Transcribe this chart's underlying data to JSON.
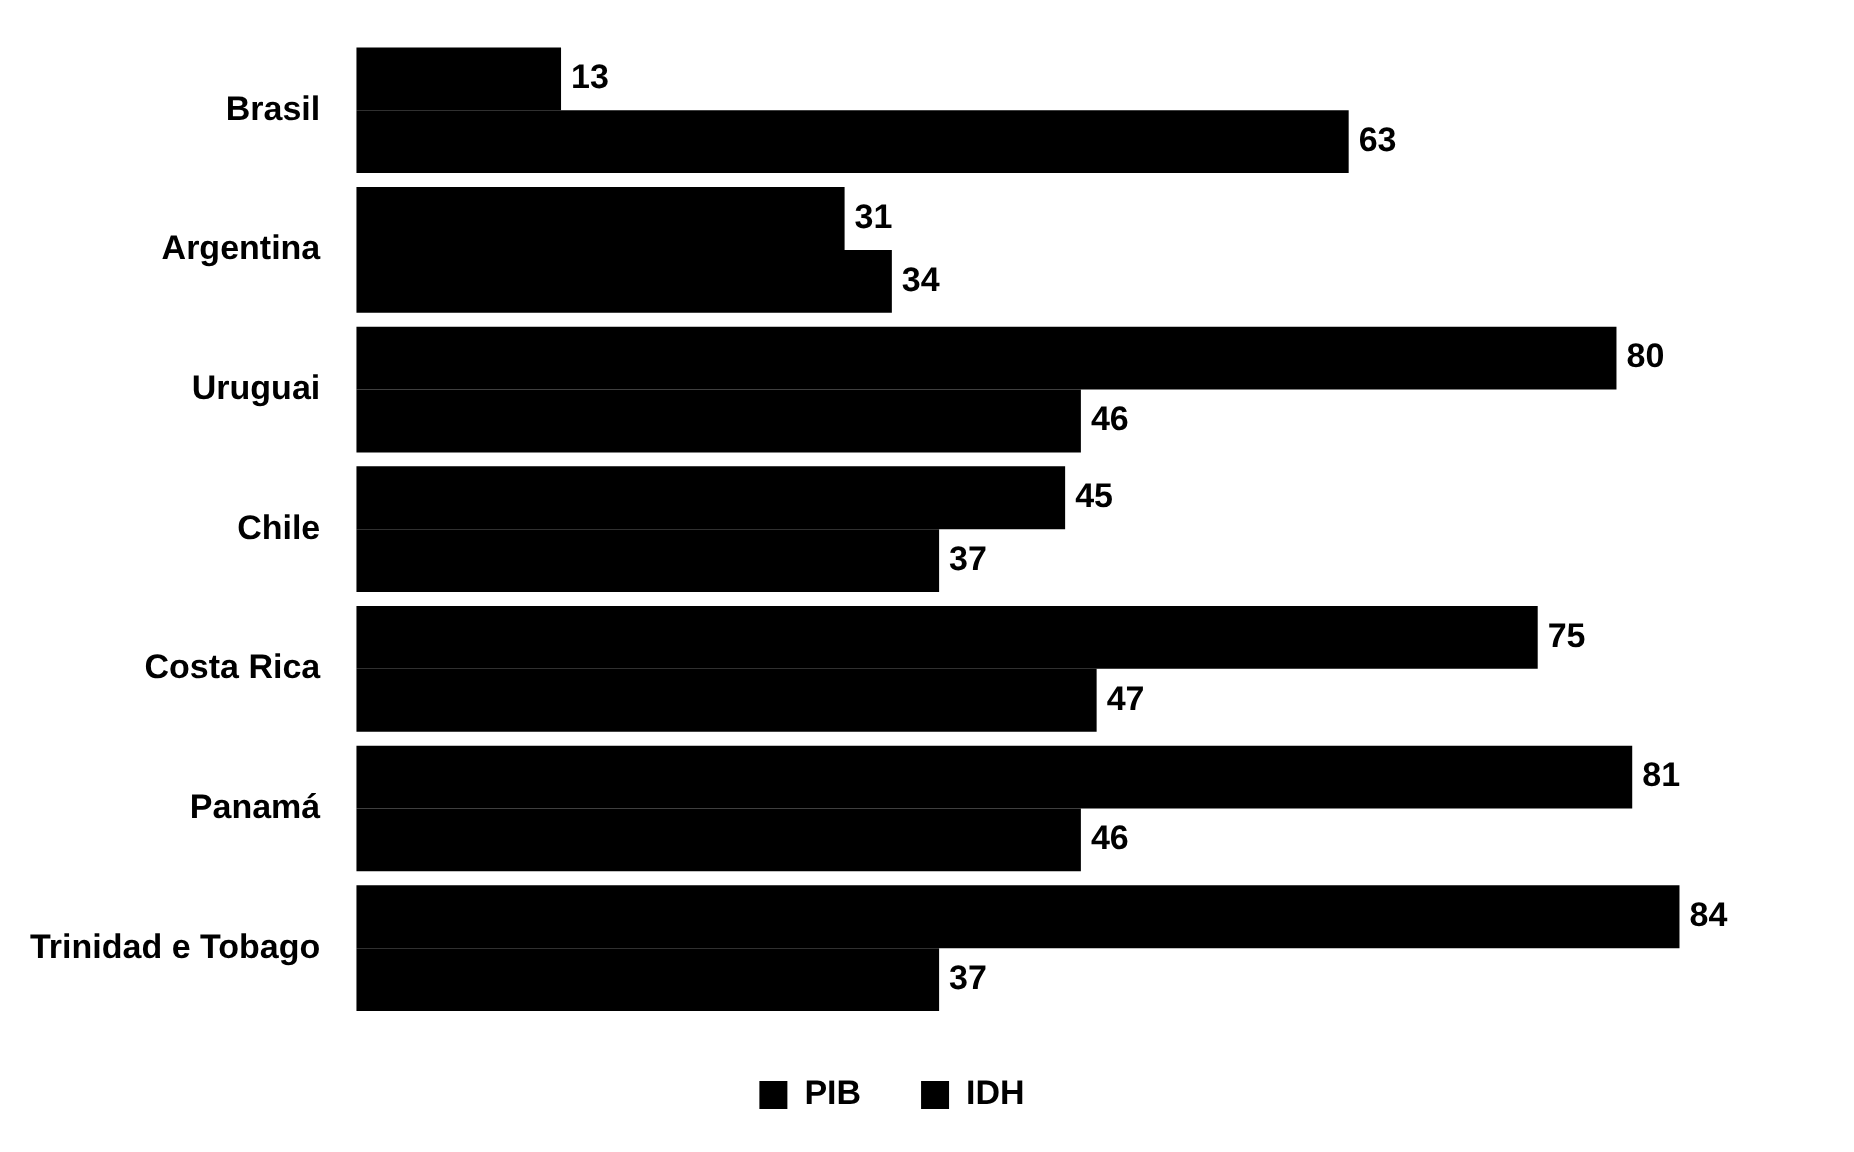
{
  "chart_data": {
    "type": "bar",
    "orientation": "horizontal",
    "categories": [
      "Brasil",
      "Argentina",
      "Uruguai",
      "Chile",
      "Costa Rica",
      "Panamá",
      "Trinidad e Tobago"
    ],
    "series": [
      {
        "name": "PIB",
        "color": "#000000",
        "values": [
          13,
          31,
          80,
          45,
          75,
          81,
          84
        ]
      },
      {
        "name": "IDH",
        "color": "#000000",
        "values": [
          63,
          34,
          46,
          37,
          47,
          46,
          37
        ]
      }
    ],
    "data_labels": true,
    "legend": "bottom"
  }
}
